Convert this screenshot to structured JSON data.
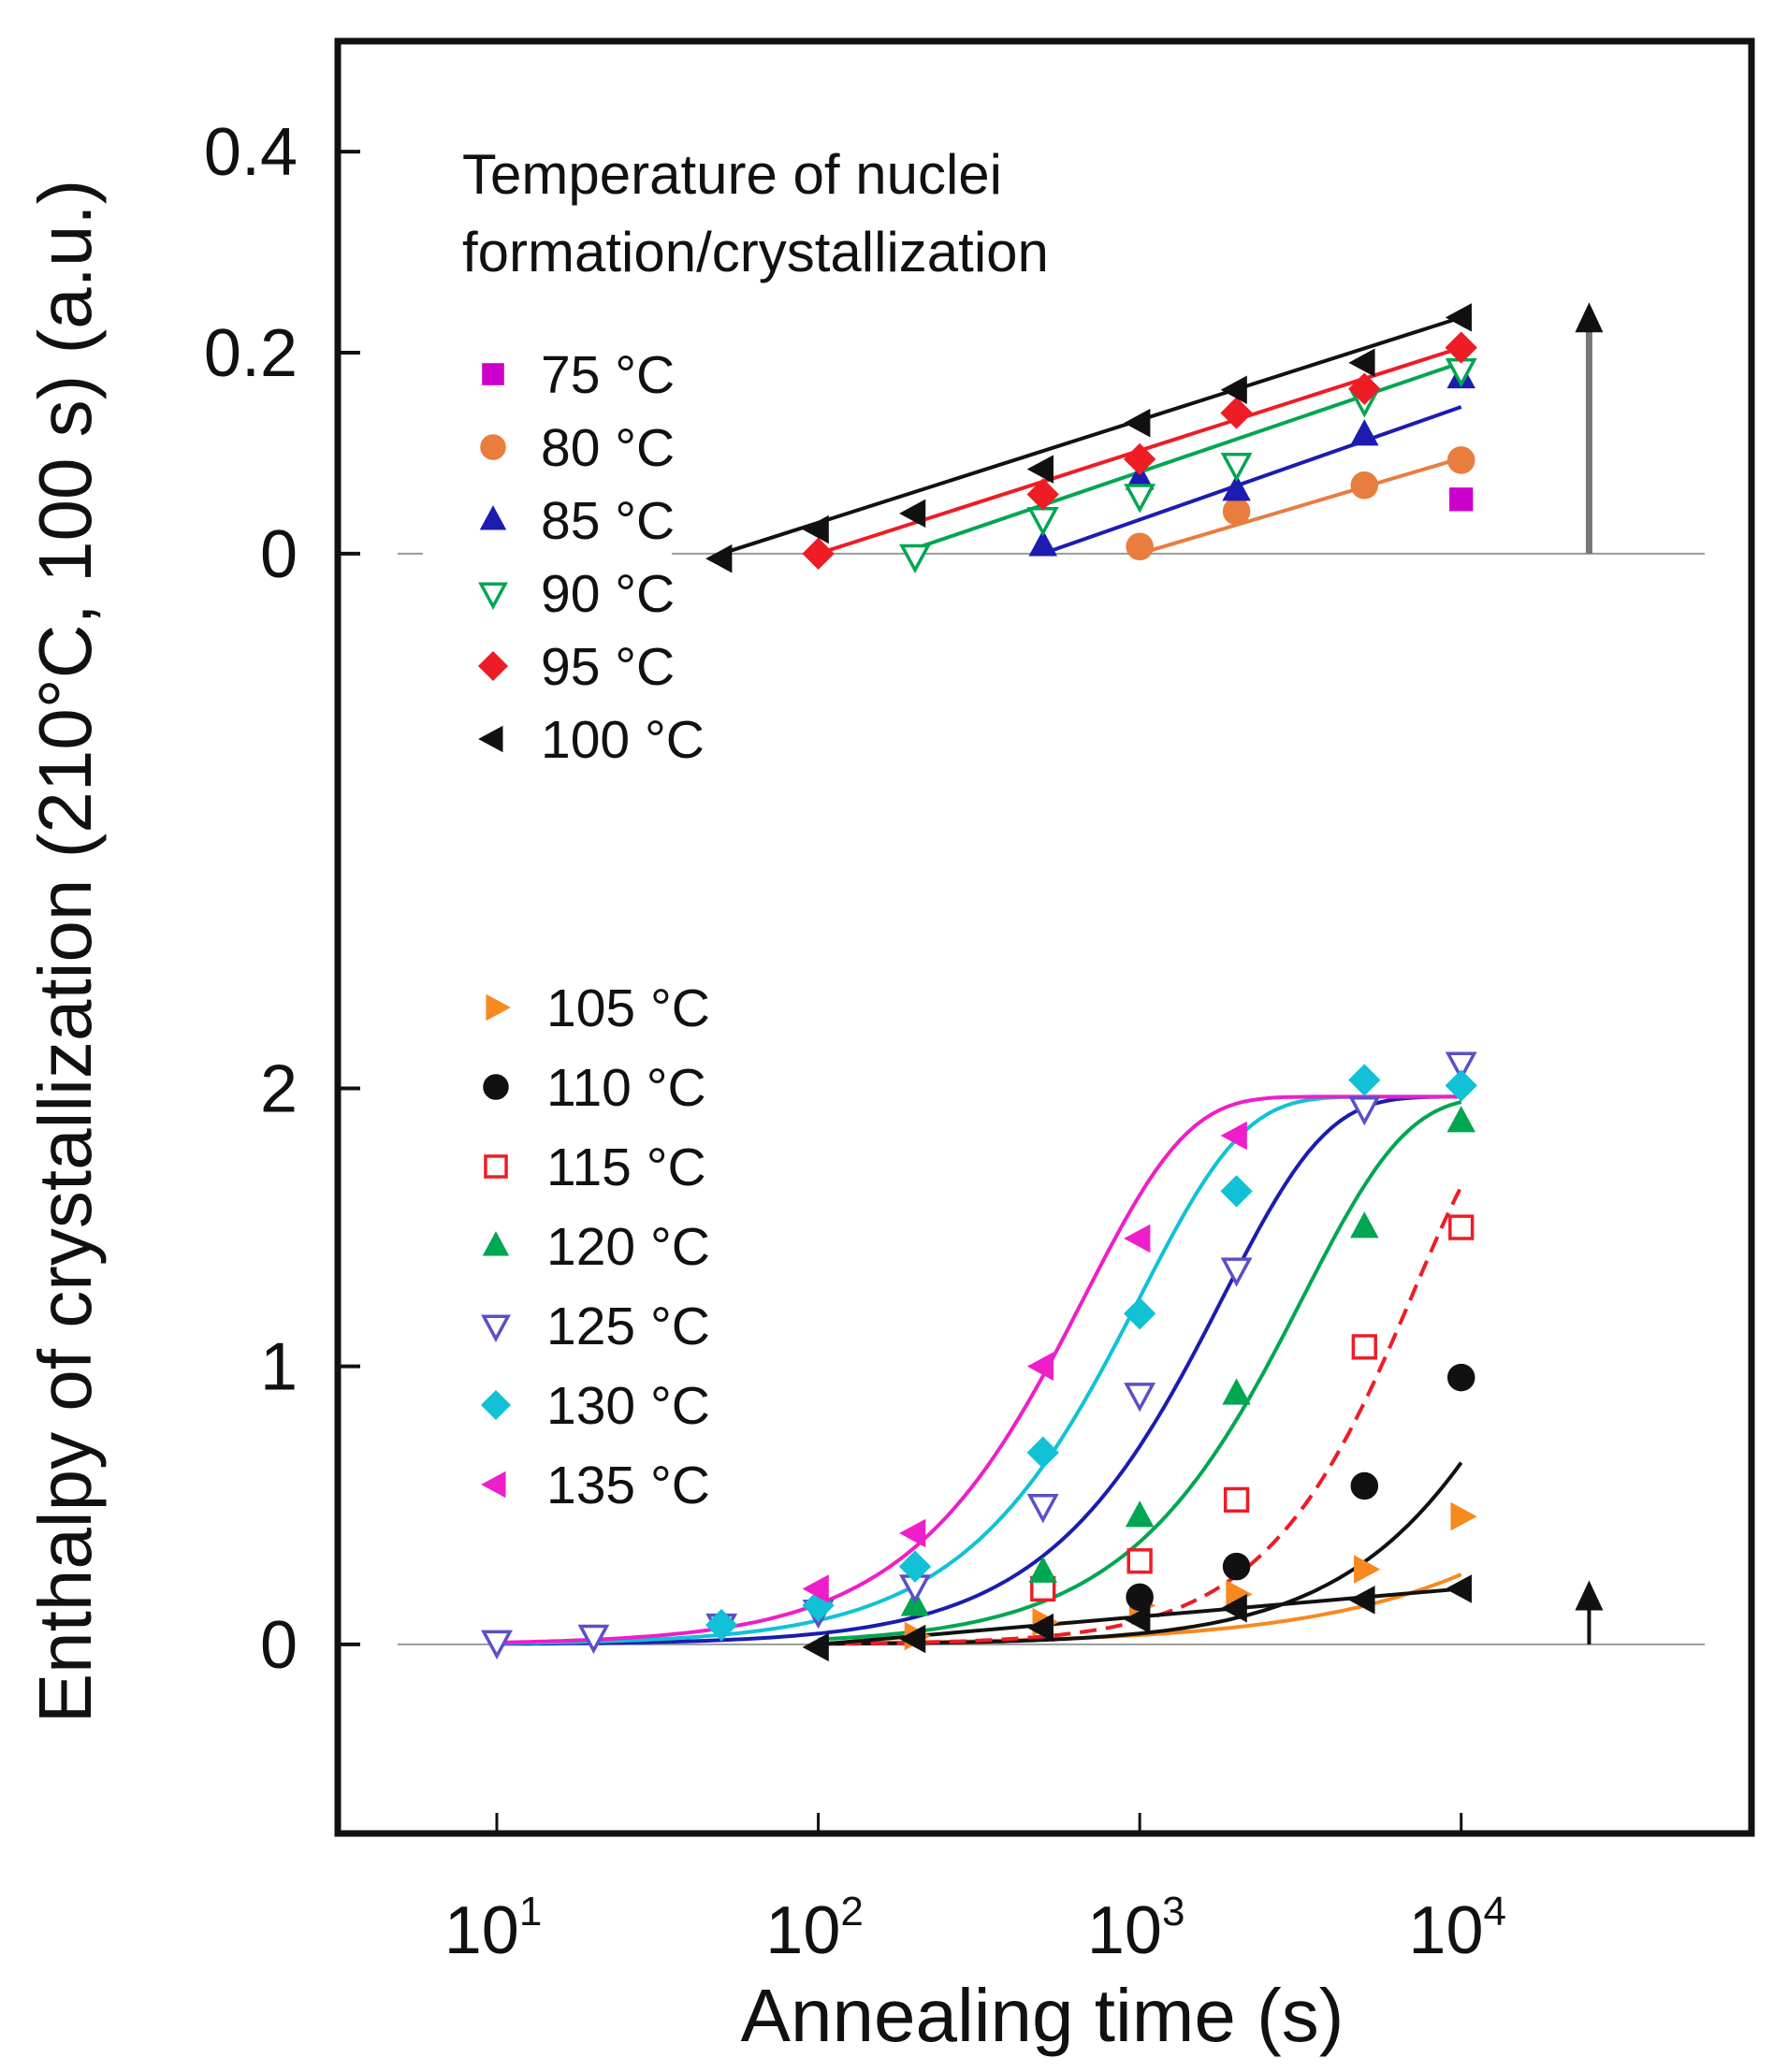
{
  "chart_data": {
    "type": "scatter",
    "x_scale": "log",
    "xlim": [
      3.2,
      80000
    ],
    "x_ticks": [
      {
        "base": "10",
        "exp": "1",
        "value": 10
      },
      {
        "base": "10",
        "exp": "2",
        "value": 100
      },
      {
        "base": "10",
        "exp": "3",
        "value": 1000
      },
      {
        "base": "10",
        "exp": "4",
        "value": 10000
      }
    ],
    "xlabel": "Annealing time (s)",
    "ylabel": "Enthalpy of crystallization  (210°C, 100 s) (a.u.)",
    "upper_panel": {
      "legend_title": "Temperature of nuclei formation/crystallization",
      "legend_title_lines": [
        "Temperature of nuclei",
        "formation/crystallization"
      ],
      "ylim": [
        -0.38,
        0.51
      ],
      "y_ticks": [
        "0.4",
        "0.2",
        "0"
      ],
      "y_tick_values": [
        0.4,
        0.2,
        0
      ],
      "arrow": {
        "x": 25000,
        "y_from": 0,
        "y_to": 0.25
      },
      "series": [
        {
          "name": "75 °C",
          "color": "#cc00cc",
          "marker": "square",
          "fill": true,
          "points": [
            [
              10000,
              0.054
            ]
          ],
          "fit": null
        },
        {
          "name": "80 °C",
          "color": "#e87d3e",
          "marker": "circle",
          "fill": true,
          "points": [
            [
              1000,
              0.007
            ],
            [
              2000,
              0.042
            ],
            [
              5000,
              0.068
            ],
            [
              10000,
              0.093
            ]
          ],
          "fit": {
            "from": 1000,
            "to": 10000,
            "y_from": 0.0,
            "y_to": 0.095,
            "dash": false
          }
        },
        {
          "name": "85 °C",
          "color": "#1c1cb0",
          "marker": "triangle-up",
          "fill": true,
          "points": [
            [
              500,
              0.008
            ],
            [
              1000,
              0.074
            ],
            [
              2000,
              0.063
            ],
            [
              5000,
              0.118
            ],
            [
              10000,
              0.175
            ]
          ],
          "fit": {
            "from": 500,
            "to": 10000,
            "y_from": 0.0,
            "y_to": 0.146,
            "dash": false
          }
        },
        {
          "name": "90 °C",
          "color": "#00a651",
          "marker": "triangle-down",
          "fill": false,
          "points": [
            [
              200,
              -0.002
            ],
            [
              500,
              0.035
            ],
            [
              1000,
              0.058
            ],
            [
              2000,
              0.089
            ],
            [
              5000,
              0.153
            ],
            [
              10000,
              0.183
            ]
          ],
          "fit": {
            "from": 200,
            "to": 10000,
            "y_from": 0.005,
            "y_to": 0.19,
            "dash": false
          }
        },
        {
          "name": "95 °C",
          "color": "#ee1c25",
          "marker": "diamond",
          "fill": true,
          "points": [
            [
              100,
              0.0
            ],
            [
              500,
              0.059
            ],
            [
              1000,
              0.094
            ],
            [
              2000,
              0.14
            ],
            [
              5000,
              0.164
            ],
            [
              10000,
              0.205
            ]
          ],
          "fit": {
            "from": 100,
            "to": 10000,
            "y_from": 0.0,
            "y_to": 0.205,
            "dash": false
          }
        },
        {
          "name": "100 °C",
          "color": "#111111",
          "marker": "triangle-left",
          "fill": true,
          "points": [
            [
              50,
              -0.005
            ],
            [
              100,
              0.024
            ],
            [
              200,
              0.04
            ],
            [
              500,
              0.084
            ],
            [
              1000,
              0.13
            ],
            [
              2000,
              0.163
            ],
            [
              5000,
              0.19
            ],
            [
              10000,
              0.235
            ]
          ],
          "fit": {
            "from": 50,
            "to": 10000,
            "y_from": 0.0,
            "y_to": 0.235,
            "dash": false
          }
        }
      ]
    },
    "lower_panel": {
      "ylim": [
        -0.68,
        2.55
      ],
      "y_ticks": [
        "2",
        "1",
        "0"
      ],
      "y_tick_values": [
        2,
        1,
        0
      ],
      "arrow": {
        "x": 25000,
        "y_from": 0,
        "y_to": 0.23
      },
      "series": [
        {
          "name": "105 °C",
          "color": "#f7891f",
          "marker": "triangle-right",
          "fill": true,
          "points": [
            [
              200,
              0.03
            ],
            [
              500,
              0.08
            ],
            [
              1000,
              0.14
            ],
            [
              2000,
              0.18
            ],
            [
              5000,
              0.27
            ],
            [
              10000,
              0.46
            ]
          ],
          "fit": {
            "type": "sigmoid",
            "A": 2.0,
            "tau": 93000,
            "n": 0.9,
            "from": 100,
            "to": 10000,
            "dash": false
          }
        },
        {
          "name": "110 °C",
          "color": "#111111",
          "marker": "circle",
          "fill": true,
          "points": [
            [
              1000,
              0.17
            ],
            [
              2000,
              0.28
            ],
            [
              5000,
              0.57
            ],
            [
              10000,
              0.96
            ]
          ],
          "fit": {
            "type": "sigmoid",
            "A": 2.0,
            "tau": 20400,
            "n": 1.3,
            "from": 100,
            "to": 10000,
            "dash": false
          }
        },
        {
          "name": "115 °C",
          "color": "#ee1c25",
          "marker": "square",
          "fill": false,
          "points": [
            [
              500,
              0.2
            ],
            [
              1000,
              0.3
            ],
            [
              2000,
              0.52
            ],
            [
              5000,
              1.07
            ],
            [
              10000,
              1.5
            ]
          ],
          "fit": {
            "type": "sigmoid",
            "A": 2.0,
            "tau": 7090,
            "n": 1.6,
            "from": 100,
            "to": 10000,
            "dash": true
          }
        },
        {
          "name": "120 °C",
          "color": "#00a651",
          "marker": "triangle-up",
          "fill": true,
          "points": [
            [
              200,
              0.14
            ],
            [
              500,
              0.26
            ],
            [
              1000,
              0.46
            ],
            [
              2000,
              0.9
            ],
            [
              5000,
              1.5
            ],
            [
              10000,
              1.88
            ]
          ],
          "fit": {
            "type": "sigmoid",
            "A": 1.97,
            "tau": 3210,
            "n": 1.35,
            "from": 100,
            "to": 10000,
            "dash": false
          }
        },
        {
          "name": "125 °C",
          "color": "#5b4fc8",
          "marker": "triangle-down",
          "fill": false,
          "points": [
            [
              10,
              0.01
            ],
            [
              20,
              0.03
            ],
            [
              50,
              0.07
            ],
            [
              100,
              0.12
            ],
            [
              200,
              0.21
            ],
            [
              500,
              0.5
            ],
            [
              1000,
              0.9
            ],
            [
              2000,
              1.35
            ],
            [
              5000,
              1.93
            ],
            [
              10000,
              2.09
            ]
          ],
          "fit": {
            "type": "sigmoid",
            "A": 1.97,
            "tau": 1810,
            "n": 1.35,
            "from": 10,
            "to": 10000,
            "dash": false,
            "color": "#1c1cb0"
          }
        },
        {
          "name": "130 °C",
          "color": "#11c1d6",
          "marker": "diamond",
          "fill": true,
          "points": [
            [
              50,
              0.07
            ],
            [
              100,
              0.14
            ],
            [
              200,
              0.28
            ],
            [
              500,
              0.69
            ],
            [
              1000,
              1.19
            ],
            [
              2000,
              1.63
            ],
            [
              5000,
              2.03
            ],
            [
              10000,
              2.01
            ]
          ],
          "fit": {
            "type": "sigmoid",
            "A": 1.97,
            "tau": 998,
            "n": 1.35,
            "from": 10,
            "to": 10000,
            "dash": false
          }
        },
        {
          "name": "135 °C",
          "color": "#ee1ec8",
          "marker": "triangle-left",
          "fill": true,
          "points": [
            [
              100,
              0.2
            ],
            [
              200,
              0.4
            ],
            [
              500,
              1.0
            ],
            [
              1000,
              1.46
            ],
            [
              2000,
              1.83
            ]
          ],
          "fit": {
            "type": "sigmoid",
            "A": 1.97,
            "tau": 670,
            "n": 1.35,
            "from": 10,
            "to": 10000,
            "dash": false
          }
        },
        {
          "name": "100 °C",
          "color": "#111111",
          "marker": "triangle-left",
          "fill": true,
          "in_legend": false,
          "points": [
            [
              100,
              -0.01
            ],
            [
              200,
              0.02
            ],
            [
              500,
              0.06
            ],
            [
              1000,
              0.09
            ],
            [
              2000,
              0.13
            ],
            [
              5000,
              0.16
            ],
            [
              10000,
              0.2
            ]
          ],
          "fit": {
            "type": "linear",
            "from": 100,
            "to": 10000,
            "y_from": 0.0,
            "y_to": 0.2,
            "dash": false
          }
        }
      ]
    }
  }
}
